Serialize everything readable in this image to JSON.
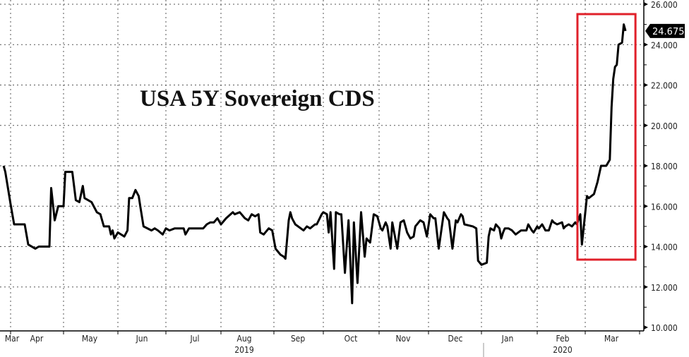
{
  "chart_data": {
    "type": "line",
    "title": "USA 5Y Sovereign CDS",
    "xlabel": "",
    "ylabel": "",
    "ylim": [
      10,
      26
    ],
    "y_ticks": [
      "10.000",
      "12.000",
      "14.000",
      "16.000",
      "18.000",
      "20.000",
      "22.000",
      "24.000",
      "26.000"
    ],
    "x_ticks": [
      "Mar",
      "Apr",
      "May",
      "Jun",
      "Jul",
      "Aug",
      "Sep",
      "Oct",
      "Nov",
      "Dec",
      "Jan",
      "Feb",
      "Mar"
    ],
    "year_labels": [
      "2019",
      "2020"
    ],
    "grid": true,
    "y_axis_position": "right",
    "last_value_label": "24.675",
    "line_color": "#000000",
    "highlight_box_color": "#e0202a",
    "highlight_range": [
      "2020-02-27",
      "2020-03-24"
    ],
    "series": [
      {
        "points": [
          [
            "2019-03-28",
            18.0
          ],
          [
            "2019-03-29",
            17.7
          ],
          [
            "2019-04-01",
            16.1
          ],
          [
            "2019-04-03",
            15.1
          ],
          [
            "2019-04-09",
            15.1
          ],
          [
            "2019-04-11",
            14.1
          ],
          [
            "2019-04-15",
            13.9
          ],
          [
            "2019-04-17",
            14.0
          ],
          [
            "2019-04-23",
            14.0
          ],
          [
            "2019-04-24",
            16.9
          ],
          [
            "2019-04-26",
            15.3
          ],
          [
            "2019-04-28",
            16.0
          ],
          [
            "2019-05-01",
            16.0
          ],
          [
            "2019-05-02",
            17.7
          ],
          [
            "2019-05-06",
            17.7
          ],
          [
            "2019-05-08",
            16.3
          ],
          [
            "2019-05-10",
            16.2
          ],
          [
            "2019-05-12",
            17.0
          ],
          [
            "2019-05-13",
            16.4
          ],
          [
            "2019-05-17",
            16.2
          ],
          [
            "2019-05-20",
            15.7
          ],
          [
            "2019-05-22",
            15.6
          ],
          [
            "2019-05-24",
            15.0
          ],
          [
            "2019-05-27",
            15.0
          ],
          [
            "2019-05-28",
            14.6
          ],
          [
            "2019-05-29",
            14.8
          ],
          [
            "2019-05-30",
            14.4
          ],
          [
            "2019-06-01",
            14.7
          ],
          [
            "2019-06-05",
            14.5
          ],
          [
            "2019-06-07",
            14.8
          ],
          [
            "2019-06-08",
            16.4
          ],
          [
            "2019-06-10",
            16.4
          ],
          [
            "2019-06-12",
            16.8
          ],
          [
            "2019-06-14",
            16.5
          ],
          [
            "2019-06-15",
            16.0
          ],
          [
            "2019-06-17",
            15.0
          ],
          [
            "2019-06-22",
            14.8
          ],
          [
            "2019-06-24",
            14.9
          ],
          [
            "2019-06-26",
            14.8
          ],
          [
            "2019-06-29",
            14.6
          ],
          [
            "2019-07-01",
            14.9
          ],
          [
            "2019-07-03",
            14.8
          ],
          [
            "2019-07-06",
            14.9
          ],
          [
            "2019-07-11",
            14.9
          ],
          [
            "2019-07-12",
            14.6
          ],
          [
            "2019-07-14",
            14.9
          ],
          [
            "2019-07-17",
            14.9
          ],
          [
            "2019-07-22",
            14.9
          ],
          [
            "2019-07-24",
            15.1
          ],
          [
            "2019-07-26",
            15.2
          ],
          [
            "2019-07-28",
            15.2
          ],
          [
            "2019-07-30",
            15.4
          ],
          [
            "2019-08-01",
            15.1
          ],
          [
            "2019-08-04",
            15.4
          ],
          [
            "2019-08-08",
            15.7
          ],
          [
            "2019-08-09",
            15.6
          ],
          [
            "2019-08-12",
            15.7
          ],
          [
            "2019-08-15",
            15.4
          ],
          [
            "2019-08-17",
            15.3
          ],
          [
            "2019-08-19",
            15.6
          ],
          [
            "2019-08-21",
            15.5
          ],
          [
            "2019-08-23",
            15.6
          ],
          [
            "2019-08-24",
            14.7
          ],
          [
            "2019-08-26",
            14.6
          ],
          [
            "2019-08-29",
            14.9
          ],
          [
            "2019-08-31",
            14.8
          ],
          [
            "2019-09-02",
            13.9
          ],
          [
            "2019-09-05",
            13.6
          ],
          [
            "2019-09-07",
            13.5
          ],
          [
            "2019-09-08",
            13.4
          ],
          [
            "2019-09-10",
            15.3
          ],
          [
            "2019-09-11",
            15.7
          ],
          [
            "2019-09-12",
            15.4
          ],
          [
            "2019-09-14",
            15.1
          ],
          [
            "2019-09-19",
            14.8
          ],
          [
            "2019-09-21",
            15.0
          ],
          [
            "2019-09-23",
            14.9
          ],
          [
            "2019-09-26",
            15.1
          ],
          [
            "2019-09-27",
            15.1
          ],
          [
            "2019-09-30",
            15.6
          ],
          [
            "2019-10-01",
            15.7
          ],
          [
            "2019-10-03",
            15.6
          ],
          [
            "2019-10-04",
            14.7
          ],
          [
            "2019-10-05",
            15.7
          ],
          [
            "2019-10-07",
            12.9
          ],
          [
            "2019-10-08",
            15.7
          ],
          [
            "2019-10-10",
            15.6
          ],
          [
            "2019-10-11",
            15.6
          ],
          [
            "2019-10-13",
            12.7
          ],
          [
            "2019-10-15",
            15.3
          ],
          [
            "2019-10-17",
            11.2
          ],
          [
            "2019-10-18",
            15.2
          ],
          [
            "2019-10-20",
            12.2
          ],
          [
            "2019-10-22",
            15.7
          ],
          [
            "2019-10-24",
            13.5
          ],
          [
            "2019-10-25",
            14.4
          ],
          [
            "2019-10-26",
            14.3
          ],
          [
            "2019-10-27",
            14.2
          ],
          [
            "2019-10-29",
            15.6
          ],
          [
            "2019-10-31",
            15.5
          ],
          [
            "2019-11-02",
            14.9
          ],
          [
            "2019-11-03",
            14.8
          ],
          [
            "2019-11-05",
            15.2
          ],
          [
            "2019-11-06",
            15.0
          ],
          [
            "2019-11-08",
            13.9
          ],
          [
            "2019-11-09",
            15.2
          ],
          [
            "2019-11-12",
            13.9
          ],
          [
            "2019-11-14",
            15.2
          ],
          [
            "2019-11-16",
            15.3
          ],
          [
            "2019-11-18",
            14.7
          ],
          [
            "2019-11-20",
            14.4
          ],
          [
            "2019-11-22",
            14.5
          ],
          [
            "2019-11-23",
            15.0
          ],
          [
            "2019-11-26",
            15.3
          ],
          [
            "2019-11-28",
            15.2
          ],
          [
            "2019-11-30",
            14.5
          ],
          [
            "2019-12-02",
            15.6
          ],
          [
            "2019-12-04",
            15.4
          ],
          [
            "2019-12-05",
            15.4
          ],
          [
            "2019-12-07",
            13.9
          ],
          [
            "2019-12-10",
            15.7
          ],
          [
            "2019-12-12",
            15.4
          ],
          [
            "2019-12-13",
            15.3
          ],
          [
            "2019-12-15",
            13.9
          ],
          [
            "2019-12-17",
            15.3
          ],
          [
            "2019-12-18",
            15.2
          ],
          [
            "2019-12-20",
            15.6
          ],
          [
            "2019-12-21",
            15.5
          ],
          [
            "2019-12-22",
            15.1
          ],
          [
            "2019-12-27",
            15.0
          ],
          [
            "2019-12-29",
            14.9
          ],
          [
            "2019-12-30",
            13.3
          ],
          [
            "2020-01-01",
            13.1
          ],
          [
            "2020-01-04",
            13.2
          ],
          [
            "2020-01-05",
            14.5
          ],
          [
            "2020-01-06",
            14.9
          ],
          [
            "2020-01-08",
            14.8
          ],
          [
            "2020-01-09",
            15.1
          ],
          [
            "2020-01-11",
            14.9
          ],
          [
            "2020-01-12",
            14.4
          ],
          [
            "2020-01-13",
            14.7
          ],
          [
            "2020-01-14",
            14.9
          ],
          [
            "2020-01-16",
            14.9
          ],
          [
            "2020-01-18",
            14.8
          ],
          [
            "2020-01-20",
            14.6
          ],
          [
            "2020-01-23",
            14.8
          ],
          [
            "2020-01-26",
            14.8
          ],
          [
            "2020-01-27",
            15.1
          ],
          [
            "2020-01-29",
            14.8
          ],
          [
            "2020-01-30",
            14.7
          ],
          [
            "2020-02-01",
            15.0
          ],
          [
            "2020-02-02",
            14.9
          ],
          [
            "2020-02-04",
            15.1
          ],
          [
            "2020-02-06",
            14.8
          ],
          [
            "2020-02-08",
            14.8
          ],
          [
            "2020-02-10",
            15.3
          ],
          [
            "2020-02-11",
            15.2
          ],
          [
            "2020-02-13",
            15.1
          ],
          [
            "2020-02-16",
            15.2
          ],
          [
            "2020-02-17",
            14.9
          ],
          [
            "2020-02-18",
            15.0
          ],
          [
            "2020-02-20",
            15.1
          ],
          [
            "2020-02-22",
            15.0
          ],
          [
            "2020-02-24",
            15.2
          ],
          [
            "2020-02-25",
            15.1
          ],
          [
            "2020-02-27",
            15.6
          ],
          [
            "2020-02-28",
            14.1
          ],
          [
            "2020-03-02",
            16.5
          ],
          [
            "2020-03-03",
            16.4
          ],
          [
            "2020-03-06",
            16.6
          ],
          [
            "2020-03-08",
            17.2
          ],
          [
            "2020-03-10",
            18.0
          ],
          [
            "2020-03-13",
            18.0
          ],
          [
            "2020-03-15",
            18.3
          ],
          [
            "2020-03-16",
            20.9
          ],
          [
            "2020-03-17",
            22.3
          ],
          [
            "2020-03-18",
            22.9
          ],
          [
            "2020-03-19",
            23.0
          ],
          [
            "2020-03-20",
            24.0
          ],
          [
            "2020-03-22",
            24.1
          ],
          [
            "2020-03-23",
            25.0
          ],
          [
            "2020-03-24",
            24.675
          ]
        ]
      }
    ]
  }
}
